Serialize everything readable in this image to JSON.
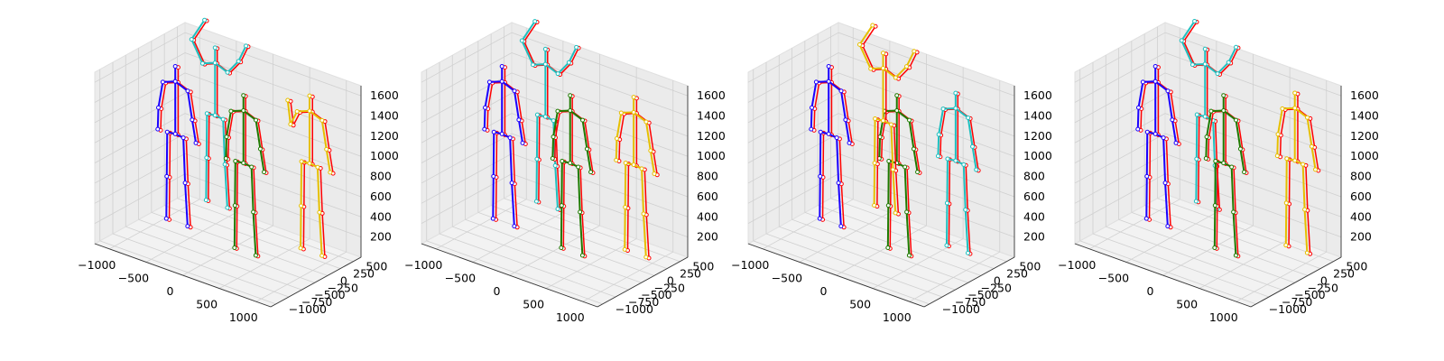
{
  "chart_data": {
    "type": "3d-skeleton-scatter",
    "panel_count": 4,
    "axes": {
      "x_ticks": [
        "−1000",
        "−500",
        "0",
        "500",
        "1000"
      ],
      "y_ticks": [
        "−1000",
        "−750",
        "−500",
        "−250",
        "0",
        "250",
        "500"
      ],
      "z_ticks": [
        "200",
        "400",
        "600",
        "800",
        "1000",
        "1200",
        "1400",
        "1600"
      ],
      "xlim": [
        -1200,
        1200
      ],
      "ylim": [
        -1100,
        650
      ],
      "zlim": [
        0,
        1700
      ],
      "grid": true,
      "pane_color": "#f2f2f2"
    },
    "ground_truth_color": "#ff0000",
    "person_colors": [
      "#1a00ff",
      "#1fbfbf",
      "#1f7a00",
      "#e6bf00"
    ],
    "panels": [
      {
        "persons": [
          {
            "x": -700,
            "y": -250,
            "pose": "stand",
            "pred_dx": 40
          },
          {
            "x": -650,
            "y": 450,
            "pose": "arms-up",
            "pred_dx": 30
          },
          {
            "x": 300,
            "y": -350,
            "pose": "stand",
            "pred_dx": 30
          },
          {
            "x": 850,
            "y": 150,
            "pose": "wave",
            "pred_dx": 40
          }
        ]
      },
      {
        "persons": [
          {
            "x": -700,
            "y": -250,
            "pose": "stand",
            "pred_dx": 40
          },
          {
            "x": -600,
            "y": 450,
            "pose": "arms-up",
            "pred_dx": 30
          },
          {
            "x": 300,
            "y": -350,
            "pose": "stand",
            "pred_dx": 30
          },
          {
            "x": 850,
            "y": 100,
            "pose": "stand",
            "pred_dx": 40
          }
        ]
      },
      {
        "persons": [
          {
            "x": -700,
            "y": -250,
            "pose": "stand",
            "pred_dx": 40
          },
          {
            "x": 750,
            "y": 150,
            "pose": "stand",
            "pred_dx": 30
          },
          {
            "x": 300,
            "y": -350,
            "pose": "stand",
            "pred_dx": 30
          },
          {
            "x": -450,
            "y": 450,
            "pose": "arms-up",
            "pred_dx": 40
          }
        ]
      },
      {
        "persons": [
          {
            "x": -700,
            "y": -250,
            "pose": "stand",
            "pred_dx": 40
          },
          {
            "x": -550,
            "y": 500,
            "pose": "arms-up",
            "pred_dx": 30
          },
          {
            "x": 300,
            "y": -350,
            "pose": "stand",
            "pred_dx": 30
          },
          {
            "x": 850,
            "y": 250,
            "pose": "stand",
            "pred_dx": 40
          }
        ]
      }
    ]
  }
}
